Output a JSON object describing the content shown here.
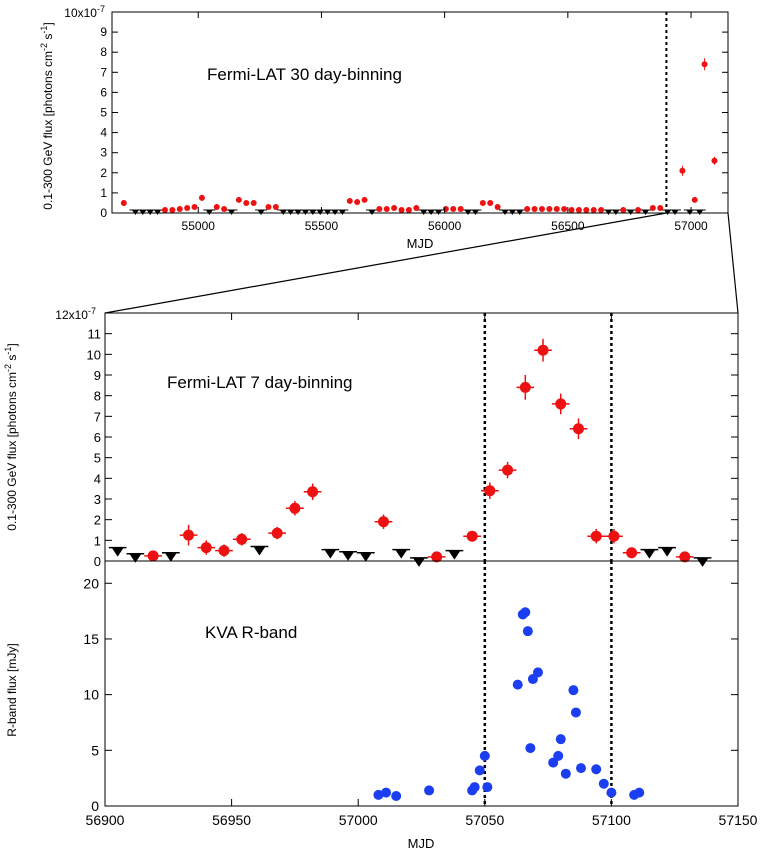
{
  "colors": {
    "detection": "#ee1111",
    "upper_limit": "#000000",
    "optical": "#1a3ef0",
    "axis": "#000000"
  },
  "chart_data": [
    {
      "id": "panel-top",
      "type": "scatter",
      "annotation": "Fermi-LAT 30 day-binning",
      "xlabel": "MJD",
      "ylabel": "0.1-300 GeV flux [photons cm^-2 s^-1]",
      "ylabel_parts": {
        "pre": "0.1-300 GeV flux [photons cm",
        "exp1": "-2",
        "mid": " s",
        "exp2": "-1",
        "post": "]"
      },
      "scale_label": "10x10",
      "scale_exp": "-7",
      "xlim": [
        54650,
        57150
      ],
      "ylim": [
        0,
        10
      ],
      "xticks": [
        55000,
        55500,
        56000,
        56500,
        57000
      ],
      "xtick_labels": [
        "55000",
        "55500",
        "56000",
        "56500",
        "57000"
      ],
      "yticks": [
        0,
        1,
        2,
        3,
        4,
        5,
        6,
        7,
        8,
        9
      ],
      "ytick_labels": [
        "0",
        "1",
        "2",
        "3",
        "4",
        "5",
        "6",
        "7",
        "8",
        "9"
      ],
      "vlines": [
        56900
      ],
      "zoom_range": [
        56900,
        57150
      ],
      "detections": [
        [
          54698,
          0.5,
          0.15
        ],
        [
          54865,
          0.15,
          0.05
        ],
        [
          54895,
          0.15,
          0.05
        ],
        [
          54925,
          0.2,
          0.05
        ],
        [
          54955,
          0.25,
          0.06
        ],
        [
          54985,
          0.3,
          0.06
        ],
        [
          55015,
          0.75,
          0.15
        ],
        [
          55075,
          0.3,
          0.06
        ],
        [
          55105,
          0.2,
          0.05
        ],
        [
          55165,
          0.65,
          0.12
        ],
        [
          55195,
          0.5,
          0.1
        ],
        [
          55225,
          0.5,
          0.1
        ],
        [
          55285,
          0.3,
          0.06
        ],
        [
          55315,
          0.3,
          0.06
        ],
        [
          55615,
          0.6,
          0.1
        ],
        [
          55645,
          0.55,
          0.1
        ],
        [
          55675,
          0.65,
          0.12
        ],
        [
          55735,
          0.2,
          0.05
        ],
        [
          55765,
          0.2,
          0.05
        ],
        [
          55795,
          0.25,
          0.05
        ],
        [
          55825,
          0.15,
          0.04
        ],
        [
          55855,
          0.15,
          0.04
        ],
        [
          55885,
          0.25,
          0.05
        ],
        [
          56005,
          0.2,
          0.05
        ],
        [
          56035,
          0.2,
          0.05
        ],
        [
          56065,
          0.2,
          0.05
        ],
        [
          56155,
          0.5,
          0.1
        ],
        [
          56185,
          0.5,
          0.1
        ],
        [
          56215,
          0.3,
          0.06
        ],
        [
          56335,
          0.2,
          0.05
        ],
        [
          56365,
          0.2,
          0.05
        ],
        [
          56395,
          0.2,
          0.05
        ],
        [
          56425,
          0.2,
          0.05
        ],
        [
          56455,
          0.2,
          0.05
        ],
        [
          56485,
          0.2,
          0.05
        ],
        [
          56515,
          0.15,
          0.04
        ],
        [
          56545,
          0.15,
          0.04
        ],
        [
          56575,
          0.15,
          0.04
        ],
        [
          56605,
          0.15,
          0.04
        ],
        [
          56635,
          0.15,
          0.04
        ],
        [
          56725,
          0.15,
          0.04
        ],
        [
          56785,
          0.15,
          0.04
        ],
        [
          56845,
          0.25,
          0.05
        ],
        [
          56875,
          0.25,
          0.05
        ],
        [
          56965,
          2.1,
          0.25
        ],
        [
          57015,
          0.65,
          0.12
        ],
        [
          57055,
          7.4,
          0.3
        ],
        [
          57095,
          2.6,
          0.2
        ]
      ],
      "upper_limits": [
        54745,
        54775,
        54805,
        54835,
        55045,
        55135,
        55255,
        55345,
        55375,
        55405,
        55435,
        55465,
        55495,
        55525,
        55555,
        55585,
        55705,
        55915,
        55945,
        55975,
        56095,
        56125,
        56245,
        56275,
        56305,
        56665,
        56695,
        56755,
        56815,
        56905,
        56935,
        56995,
        57035
      ]
    },
    {
      "id": "panel-middle",
      "type": "scatter",
      "annotation": "Fermi-LAT 7 day-binning",
      "ylabel": "0.1-300 GeV flux [photons cm^-2 s^-1]",
      "ylabel_parts": {
        "pre": "0.1-300 GeV flux [photons cm",
        "exp1": "-2",
        "mid": " s",
        "exp2": "-1",
        "post": "]"
      },
      "scale_label": "12x10",
      "scale_exp": "-7",
      "xlim": [
        56900,
        57150
      ],
      "ylim": [
        0,
        12
      ],
      "yticks": [
        0,
        1,
        2,
        3,
        4,
        5,
        6,
        7,
        8,
        9,
        10,
        11
      ],
      "ytick_labels": [
        "0",
        "1",
        "2",
        "3",
        "4",
        "5",
        "6",
        "7",
        "8",
        "9",
        "10",
        "11"
      ],
      "vlines": [
        57050,
        57100
      ],
      "detections": [
        [
          56919,
          0.25,
          0.15
        ],
        [
          56933,
          1.25,
          0.5
        ],
        [
          56940,
          0.65,
          0.35
        ],
        [
          56947,
          0.5,
          0.3
        ],
        [
          56954,
          1.05,
          0.3
        ],
        [
          56968,
          1.35,
          0.3
        ],
        [
          56975,
          2.55,
          0.35
        ],
        [
          56982,
          3.35,
          0.4
        ],
        [
          57010,
          1.9,
          0.35
        ],
        [
          57031,
          0.2,
          0.1
        ],
        [
          57045,
          1.2,
          0.25
        ],
        [
          57052,
          3.4,
          0.4
        ],
        [
          57059,
          4.4,
          0.4
        ],
        [
          57066,
          8.4,
          0.6
        ],
        [
          57073,
          10.2,
          0.55
        ],
        [
          57080,
          7.6,
          0.5
        ],
        [
          57087,
          6.4,
          0.5
        ],
        [
          57094,
          1.2,
          0.35
        ],
        [
          57101,
          1.2,
          0.35
        ],
        [
          57108,
          0.4,
          0.25
        ],
        [
          57129,
          0.2,
          0.1
        ]
      ],
      "upper_limits": [
        [
          56905,
          0.65
        ],
        [
          56912,
          0.35
        ],
        [
          56926,
          0.4
        ],
        [
          56961,
          0.7
        ],
        [
          56989,
          0.55
        ],
        [
          56996,
          0.45
        ],
        [
          57003,
          0.4
        ],
        [
          57017,
          0.55
        ],
        [
          57024,
          0.15
        ],
        [
          57038,
          0.5
        ],
        [
          57115,
          0.55
        ],
        [
          57122,
          0.65
        ],
        [
          57136,
          0.15
        ]
      ]
    },
    {
      "id": "panel-bottom",
      "type": "scatter",
      "annotation": "KVA R-band",
      "xlabel": "MJD",
      "ylabel": "R-band flux [mJy]",
      "xlim": [
        56900,
        57150
      ],
      "ylim": [
        0,
        22
      ],
      "xticks": [
        56900,
        56950,
        57000,
        57050,
        57100,
        57150
      ],
      "xtick_labels": [
        "56900",
        "56950",
        "57000",
        "57050",
        "57100",
        "57150"
      ],
      "yticks": [
        0,
        5,
        10,
        15,
        20
      ],
      "ytick_labels": [
        "0",
        "5",
        "10",
        "15",
        "20"
      ],
      "vlines": [
        57050,
        57100
      ],
      "points": [
        [
          57008,
          1.0
        ],
        [
          57011,
          1.2
        ],
        [
          57015,
          0.9
        ],
        [
          57028,
          1.4
        ],
        [
          57045,
          1.4
        ],
        [
          57046,
          1.7
        ],
        [
          57048,
          3.2
        ],
        [
          57050,
          4.5
        ],
        [
          57051,
          1.7
        ],
        [
          57063,
          10.9
        ],
        [
          57065,
          17.2
        ],
        [
          57066,
          17.4
        ],
        [
          57067,
          15.7
        ],
        [
          57068,
          5.2
        ],
        [
          57069,
          11.4
        ],
        [
          57071,
          12.0
        ],
        [
          57077,
          3.9
        ],
        [
          57079,
          4.5
        ],
        [
          57080,
          6.0
        ],
        [
          57082,
          2.9
        ],
        [
          57085,
          10.4
        ],
        [
          57086,
          8.4
        ],
        [
          57088,
          3.4
        ],
        [
          57094,
          3.3
        ],
        [
          57097,
          2.0
        ],
        [
          57100,
          1.2
        ],
        [
          57109,
          1.0
        ],
        [
          57111,
          1.2
        ]
      ]
    }
  ]
}
